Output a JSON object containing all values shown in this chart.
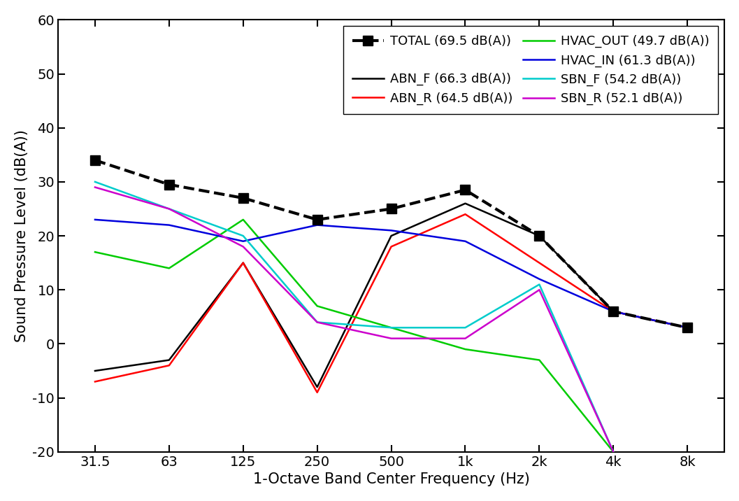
{
  "x_labels": [
    "31.5",
    "63",
    "125",
    "250",
    "500",
    "1k",
    "2k",
    "4k",
    "8k"
  ],
  "x_positions": [
    0,
    1,
    2,
    3,
    4,
    5,
    6,
    7,
    8
  ],
  "series": {
    "TOTAL": {
      "label": "TOTAL (69.5 dB(A))",
      "color": "#000000",
      "linewidth": 3.0,
      "linestyle": "--",
      "marker": "s",
      "markersize": 10,
      "markerfacecolor": "#000000",
      "zorder": 10,
      "values": [
        34,
        29.5,
        27,
        23,
        25,
        28.5,
        20,
        6,
        3
      ]
    },
    "ABN_F": {
      "label": "ABN_F (66.3 dB(A))",
      "color": "#000000",
      "linewidth": 1.8,
      "linestyle": "-",
      "marker": null,
      "zorder": 5,
      "values": [
        -5,
        -3,
        15,
        -8,
        20,
        26,
        20,
        6,
        3
      ]
    },
    "ABN_R": {
      "label": "ABN_R (64.5 dB(A))",
      "color": "#ff0000",
      "linewidth": 1.8,
      "linestyle": "-",
      "marker": null,
      "zorder": 5,
      "values": [
        -7,
        -4,
        15,
        -9,
        18,
        24,
        15,
        6,
        3
      ]
    },
    "HVAC_OUT": {
      "label": "HVAC_OUT (49.7 dB(A))",
      "color": "#00cc00",
      "linewidth": 1.8,
      "linestyle": "-",
      "marker": null,
      "zorder": 5,
      "values": [
        17,
        14,
        23,
        7,
        3,
        -1,
        -3,
        -20,
        null
      ]
    },
    "HVAC_IN": {
      "label": "HVAC_IN (61.3 dB(A))",
      "color": "#0000dd",
      "linewidth": 1.8,
      "linestyle": "-",
      "marker": null,
      "zorder": 5,
      "values": [
        23,
        22,
        19,
        22,
        21,
        19,
        12,
        6,
        3
      ]
    },
    "SBN_F": {
      "label": "SBN_F (54.2 dB(A))",
      "color": "#00cccc",
      "linewidth": 1.8,
      "linestyle": "-",
      "marker": null,
      "zorder": 5,
      "values": [
        30,
        25,
        20,
        4,
        3,
        3,
        11,
        -20,
        null
      ]
    },
    "SBN_R": {
      "label": "SBN_R (52.1 dB(A))",
      "color": "#cc00cc",
      "linewidth": 1.8,
      "linestyle": "-",
      "marker": null,
      "zorder": 5,
      "values": [
        29,
        25,
        18,
        4,
        1,
        1,
        10,
        -20,
        null
      ]
    }
  },
  "ylim": [
    -20,
    60
  ],
  "yticks": [
    -20,
    -10,
    0,
    10,
    20,
    30,
    40,
    50,
    60
  ],
  "ylabel": "Sound Pressure Level (dB(A))",
  "xlabel": "1-Octave Band Center Frequency (Hz)",
  "legend_fontsize": 13,
  "axis_fontsize": 15,
  "tick_fontsize": 14,
  "background_color": "#ffffff"
}
